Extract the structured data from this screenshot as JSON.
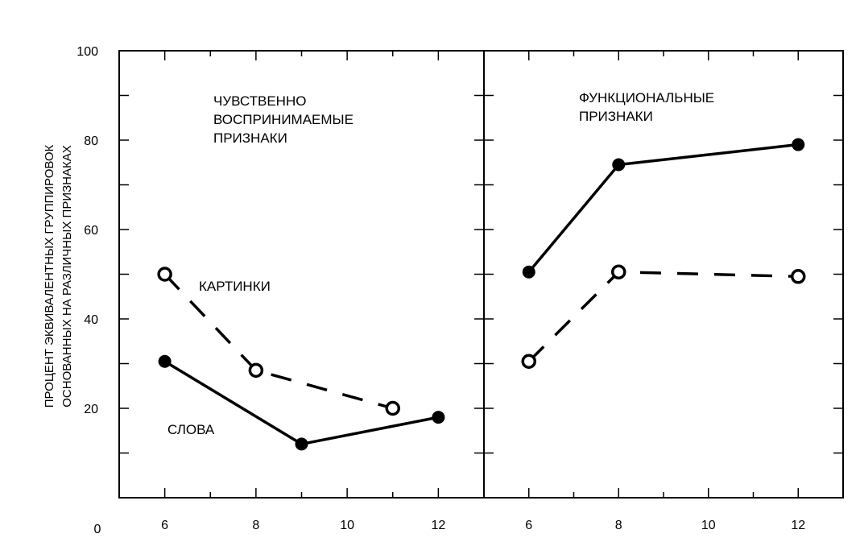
{
  "chart_data": {
    "type": "line",
    "ylabel": "ПРОЦЕНТ ЭКВИВАЛЕНТНЫХ ГРУППИРОВОК ОСНОВАННЫХ НА РАЗЛИЧНЫХ ПРИЗНАКАХ",
    "ylabel_lines": [
      "ПРОЦЕНТ ЭКВИВАЛЕНТНЫХ ГРУППИРОВОК",
      "ОСНОВАННЫХ НА РАЗЛИЧНЫХ ПРИЗНАКАХ"
    ],
    "ylim": [
      0,
      100
    ],
    "y_ticks": [
      20,
      40,
      60,
      80,
      100
    ],
    "x_origin_label": "0",
    "panels": [
      {
        "title_lines": [
          "ЧУВСТВЕННО",
          "ВОСПРИНИМАЕМЫЕ",
          "ПРИЗНАКИ"
        ],
        "xlim": [
          5,
          13
        ],
        "x_ticks": [
          6,
          8,
          10,
          12
        ],
        "series": [
          {
            "name": "КАРТИНКИ",
            "style": "dashed",
            "marker": "open-circle",
            "x": [
              6,
              8,
              11
            ],
            "y": [
              50,
              28.5,
              20
            ]
          },
          {
            "name": "СЛОВА",
            "style": "solid",
            "marker": "filled-circle",
            "x": [
              6,
              9,
              12
            ],
            "y": [
              30.5,
              12,
              18
            ]
          }
        ]
      },
      {
        "title_lines": [
          "ФУНКЦИОНАЛЬНЫЕ",
          "ПРИЗНАКИ"
        ],
        "xlim": [
          5,
          13
        ],
        "x_ticks": [
          6,
          8,
          10,
          12
        ],
        "series": [
          {
            "name": "",
            "style": "solid",
            "marker": "filled-circle",
            "x": [
              6,
              8,
              12
            ],
            "y": [
              50.5,
              74.5,
              79
            ]
          },
          {
            "name": "",
            "style": "dashed",
            "marker": "open-circle",
            "x": [
              6,
              8,
              12
            ],
            "y": [
              30.5,
              50.5,
              49.5
            ]
          }
        ]
      }
    ]
  }
}
